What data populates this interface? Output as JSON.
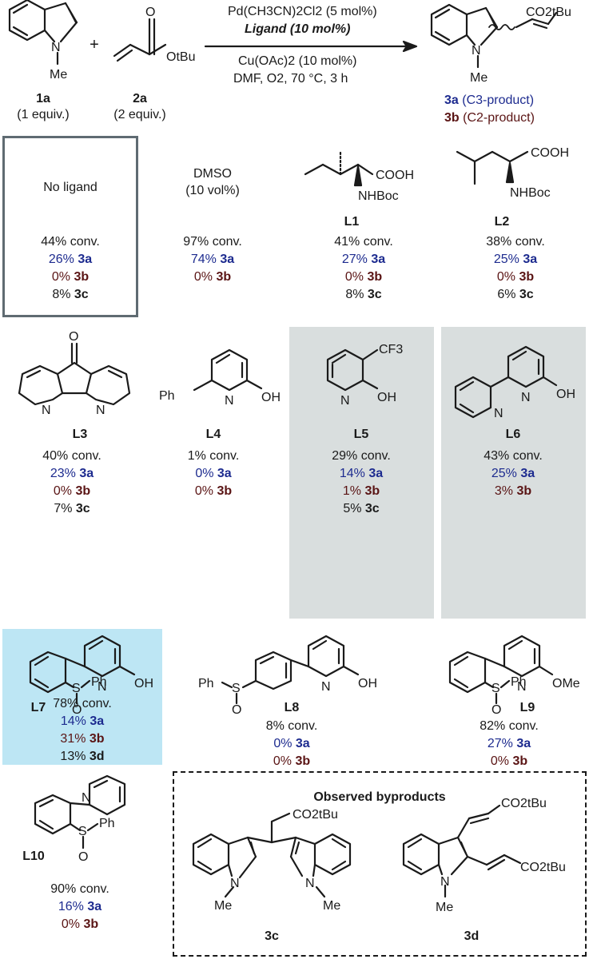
{
  "reaction": {
    "reactant1": {
      "label": "1a",
      "equiv": "(1 equiv.)",
      "n_label": "N",
      "me_label": "Me"
    },
    "reactant2": {
      "label": "2a",
      "equiv": "(2 equiv.)",
      "o_label": "O",
      "otbu_label": "OtBu"
    },
    "plus": "+",
    "conditions": {
      "above": [
        "Pd(CH3CN)2Cl2 (5 mol%)",
        "Ligand (10 mol%)"
      ],
      "below": [
        "Cu(OAc)2 (10 mol%)",
        "DMF, O2, 70 °C, 3 h"
      ]
    },
    "product": {
      "substituent": "CO2tBu",
      "n_label": "N",
      "me_label": "Me",
      "p3a": {
        "id": "3a",
        "desc": "(C3-product)"
      },
      "p3b": {
        "id": "3b",
        "desc": "(C2-product)"
      }
    }
  },
  "entries": [
    {
      "key": "noligand",
      "name": "No ligand",
      "label": "",
      "conv": "44% conv.",
      "y3a": "26%",
      "y3b": "0%",
      "extra_val": "8%",
      "extra_id": "3c"
    },
    {
      "key": "dmso",
      "name": "DMSO",
      "name2": "(10 vol%)",
      "label": "",
      "conv": "97% conv.",
      "y3a": "74%",
      "y3b": "0%"
    },
    {
      "key": "L1",
      "label": "L1",
      "atoms": [
        "COOH",
        "NHBoc"
      ],
      "conv": "41% conv.",
      "y3a": "27%",
      "y3b": "0%",
      "extra_val": "8%",
      "extra_id": "3c"
    },
    {
      "key": "L2",
      "label": "L2",
      "atoms": [
        "COOH",
        "NHBoc"
      ],
      "conv": "38% conv.",
      "y3a": "25%",
      "y3b": "0%",
      "extra_val": "6%",
      "extra_id": "3c"
    },
    {
      "key": "L3",
      "label": "L3",
      "atoms": [
        "O",
        "N",
        "N"
      ],
      "conv": "40% conv.",
      "y3a": "23%",
      "y3b": "0%",
      "extra_val": "7%",
      "extra_id": "3c"
    },
    {
      "key": "L4",
      "label": "L4",
      "atoms": [
        "Ph",
        "N",
        "OH"
      ],
      "conv": "1% conv.",
      "y3a": "0%",
      "y3b": "0%"
    },
    {
      "key": "L5",
      "label": "L5",
      "atoms": [
        "CF3",
        "N",
        "OH"
      ],
      "conv": "29% conv.",
      "y3a": "14%",
      "y3b": "1%",
      "extra_val": "5%",
      "extra_id": "3c"
    },
    {
      "key": "L6",
      "label": "L6",
      "atoms": [
        "N",
        "N",
        "OH"
      ],
      "conv": "43% conv.",
      "y3a": "25%",
      "y3b": "3%"
    },
    {
      "key": "L7",
      "label": "L7",
      "atoms": [
        "N",
        "OH",
        "S",
        "Ph",
        "O"
      ],
      "conv": "78% conv.",
      "y3a": "14%",
      "y3b": "31%",
      "extra_val": "13%",
      "extra_id": "3d"
    },
    {
      "key": "L8",
      "label": "L8",
      "atoms": [
        "N",
        "OH",
        "Ph",
        "S",
        "O"
      ],
      "conv": "8% conv.",
      "y3a": "0%",
      "y3b": "0%"
    },
    {
      "key": "L9",
      "label": "L9",
      "atoms": [
        "N",
        "OMe",
        "S",
        "Ph",
        "O"
      ],
      "conv": "82% conv.",
      "y3a": "27%",
      "y3b": "0%"
    },
    {
      "key": "L10",
      "label": "L10",
      "atoms": [
        "N",
        "S",
        "Ph",
        "O"
      ],
      "conv": "90% conv.",
      "y3a": "16%",
      "y3b": "0%"
    }
  ],
  "compound_ids": {
    "a": "3a",
    "b": "3b"
  },
  "byproducts": {
    "title": "Observed byproducts",
    "c": {
      "label": "3c",
      "substituent": "CO2tBu",
      "n1": "N",
      "me1": "Me",
      "n2": "N",
      "me2": "Me"
    },
    "d": {
      "label": "3d",
      "sub1": "CO2tBu",
      "sub2": "CO2tBu",
      "n": "N",
      "me": "Me"
    }
  },
  "colors": {
    "blue": "#1d2b8f",
    "maroon": "#5a1414",
    "grey_box": "#d9dede",
    "highlight": "#bde6f4",
    "frame": "#5f6b72"
  }
}
